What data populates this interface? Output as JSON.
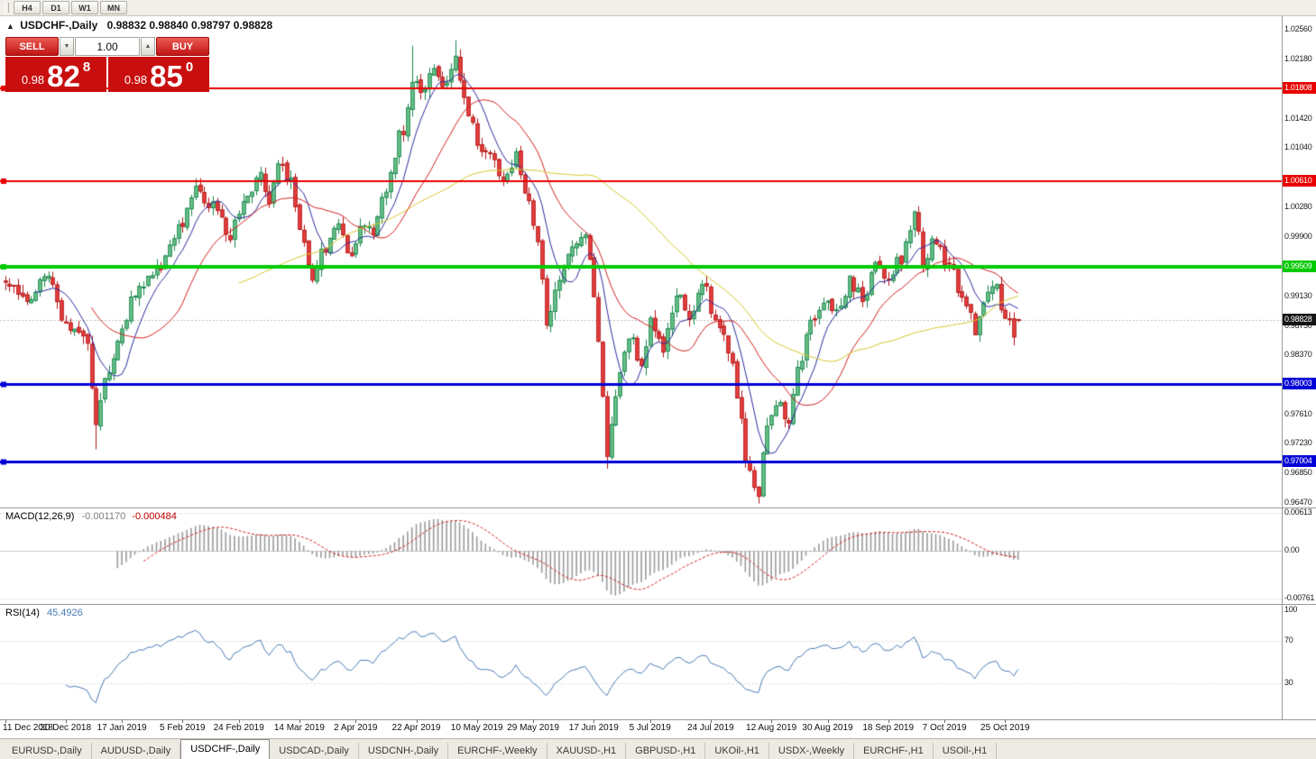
{
  "toolbar": {
    "timeframes": [
      "H4",
      "D1",
      "W1",
      "MN"
    ]
  },
  "chart": {
    "collapse_icon": "▲",
    "title": "USDCHF-,Daily",
    "ohlc_text": "0.98832 0.98840 0.98797 0.98828",
    "trade_widget": {
      "sell_label": "SELL",
      "buy_label": "BUY",
      "volume": "1.00",
      "decrease_icon": "▼",
      "increase_icon": "▲",
      "sell_price_small": "0.98",
      "sell_price_big": "82",
      "sell_price_sup": "8",
      "buy_price_small": "0.98",
      "buy_price_big": "85",
      "buy_price_sup": "0"
    }
  },
  "macd_panel": {
    "label": "MACD(12,26,9)",
    "value1": "-0.001170",
    "value2": "-0.000484"
  },
  "rsi_panel": {
    "label": "RSI(14)",
    "value": "45.4926"
  },
  "tabs": {
    "active_index": 2,
    "items": [
      "EURUSD-,Daily",
      "AUDUSD-,Daily",
      "USDCHF-,Daily",
      "USDCAD-,Daily",
      "USDCNH-,Daily",
      "EURCHF-,Weekly",
      "XAUUSD-,H1",
      "GBPUSD-,H1",
      "UKOil-,H1",
      "USDX-,Weekly",
      "EURCHF-,H1",
      "USOil-,H1"
    ]
  },
  "chart_data": {
    "type": "candlestick",
    "symbol": "USDCHF",
    "timeframe": "Daily",
    "candle_count": 235,
    "seed": 12,
    "last_candle": [
      0.98832,
      0.9884,
      0.98797,
      0.98828
    ],
    "ylim": [
      0.9641,
      1.0274
    ],
    "y_ticks": [
      "1.02560",
      "1.02180",
      "1.01420",
      "1.01040",
      "1.00280",
      "0.99900",
      "0.99130",
      "0.98750",
      "0.98370",
      "0.97610",
      "0.97230",
      "0.96850",
      "0.96470"
    ],
    "x_labels": [
      "11 Dec 2018",
      "30 Dec 2018",
      "17 Jan 2019",
      "5 Feb 2019",
      "24 Feb 2019",
      "14 Mar 2019",
      "2 Apr 2019",
      "22 Apr 2019",
      "10 May 2019",
      "29 May 2019",
      "17 Jun 2019",
      "5 Jul 2019",
      "24 Jul 2019",
      "12 Aug 2019",
      "30 Aug 2019",
      "18 Sep 2019",
      "7 Oct 2019",
      "25 Oct 2019"
    ],
    "price_path": [
      [
        0,
        0.9935
      ],
      [
        5,
        0.991
      ],
      [
        10,
        0.9945
      ],
      [
        14,
        0.988
      ],
      [
        19,
        0.9858
      ],
      [
        21,
        0.9748
      ],
      [
        23,
        0.98
      ],
      [
        26,
        0.9855
      ],
      [
        30,
        0.992
      ],
      [
        35,
        0.995
      ],
      [
        40,
        1.0
      ],
      [
        44,
        1.0055
      ],
      [
        48,
        1.003
      ],
      [
        52,
        0.999
      ],
      [
        55,
        1.004
      ],
      [
        59,
        1.007
      ],
      [
        61,
        1.003
      ],
      [
        63,
        1.0085
      ],
      [
        66,
        1.006
      ],
      [
        68,
        0.9995
      ],
      [
        71,
        0.994
      ],
      [
        74,
        0.9975
      ],
      [
        77,
        1.0
      ],
      [
        80,
        0.9958
      ],
      [
        82,
        1.0008
      ],
      [
        85,
        0.999
      ],
      [
        88,
        1.0055
      ],
      [
        92,
        1.013
      ],
      [
        94,
        1.0195
      ],
      [
        97,
        1.018
      ],
      [
        99,
        1.0215
      ],
      [
        101,
        1.018
      ],
      [
        104,
        1.0218
      ],
      [
        107,
        1.015
      ],
      [
        109,
        1.0108
      ],
      [
        112,
        1.009
      ],
      [
        115,
        1.0062
      ],
      [
        118,
        1.0095
      ],
      [
        120,
        1.0042
      ],
      [
        123,
        0.999
      ],
      [
        125,
        0.9875
      ],
      [
        128,
        0.993
      ],
      [
        131,
        0.9972
      ],
      [
        134,
        0.9998
      ],
      [
        136,
        0.992
      ],
      [
        138,
        0.979
      ],
      [
        139,
        0.9715
      ],
      [
        141,
        0.979
      ],
      [
        144,
        0.9862
      ],
      [
        147,
        0.983
      ],
      [
        149,
        0.9882
      ],
      [
        152,
        0.985
      ],
      [
        155,
        0.9918
      ],
      [
        158,
        0.988
      ],
      [
        161,
        0.9928
      ],
      [
        164,
        0.989
      ],
      [
        167,
        0.9848
      ],
      [
        169,
        0.979
      ],
      [
        171,
        0.9705
      ],
      [
        174,
        0.9662
      ],
      [
        176,
        0.9745
      ],
      [
        179,
        0.9778
      ],
      [
        181,
        0.9742
      ],
      [
        183,
        0.9818
      ],
      [
        186,
        0.9878
      ],
      [
        190,
        0.9912
      ],
      [
        192,
        0.989
      ],
      [
        195,
        0.9932
      ],
      [
        198,
        0.991
      ],
      [
        201,
        0.9948
      ],
      [
        204,
        0.9938
      ],
      [
        207,
        0.9962
      ],
      [
        210,
        1.0022
      ],
      [
        212,
        0.9958
      ],
      [
        215,
        0.9988
      ],
      [
        218,
        0.9948
      ],
      [
        221,
        0.9918
      ],
      [
        224,
        0.9872
      ],
      [
        226,
        0.9908
      ],
      [
        228,
        0.9932
      ],
      [
        231,
        0.9893
      ],
      [
        233,
        0.9862
      ],
      [
        234,
        0.9883
      ]
    ],
    "extremes": [
      [
        21,
        "low",
        0.9716
      ],
      [
        94,
        "high",
        1.0236
      ],
      [
        104,
        "high",
        1.0243
      ],
      [
        139,
        "low",
        0.9691
      ],
      [
        174,
        "low",
        0.9648
      ]
    ],
    "moving_averages": [
      {
        "period": 8,
        "color": "#2a2aa0"
      },
      {
        "period": 21,
        "color": "#cf2020"
      },
      {
        "period": 55,
        "color": "#d4c62a"
      }
    ],
    "levels": [
      {
        "price": 1.01808,
        "label": "1.01808",
        "color": "#e80000",
        "width": 2
      },
      {
        "price": 1.0061,
        "label": "1.00610",
        "color": "#e80000",
        "width": 2
      },
      {
        "price": 0.99509,
        "label": "0.99509",
        "color": "#00ca00",
        "width": 4
      },
      {
        "price": 0.98003,
        "label": "0.98003",
        "color": "#0000d8",
        "width": 3
      },
      {
        "price": 0.97004,
        "label": "0.97004",
        "color": "#0000d8",
        "width": 3
      }
    ],
    "current_price": {
      "value": 0.98828,
      "label": "0.98828",
      "color": "#151515"
    },
    "candle_colors": {
      "bull_fill": "#6cc48a",
      "bull_border": "#17854b",
      "bear_fill": "#e64040",
      "bear_border": "#b51616"
    },
    "macd": {
      "fast": 12,
      "slow": 26,
      "signal": 9,
      "ylim": [
        -0.0085,
        0.0069
      ],
      "y_ticks": [
        "0.00613",
        "0.00",
        "-0.00761"
      ],
      "histogram_color": "#9a9a9a",
      "signal_color": "#cf2020",
      "current_main": -0.00117,
      "current_signal": -0.000484
    },
    "rsi": {
      "period": 14,
      "ylim": [
        -5,
        105
      ],
      "y_ticks": [
        "100",
        "70",
        "30"
      ],
      "levels": [
        70,
        30
      ],
      "line_color": "#4a7ab5",
      "current": 45.4926
    }
  }
}
